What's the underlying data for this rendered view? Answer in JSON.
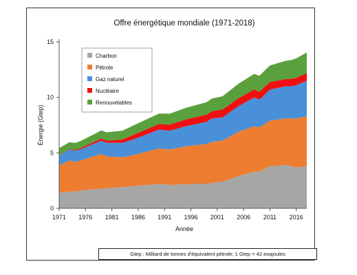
{
  "chart_data": {
    "type": "area",
    "stacked": true,
    "title": "Offre énergétique mondiale (1971-2018)",
    "xlabel": "Année",
    "ylabel": "Énergie (Gtep)",
    "xlim": [
      1971,
      2018
    ],
    "ylim": [
      0,
      15
    ],
    "x_ticks": [
      1971,
      1976,
      1981,
      1986,
      1991,
      1996,
      2001,
      2006,
      2011,
      2016
    ],
    "y_ticks": [
      0,
      5,
      10,
      15
    ],
    "grid": false,
    "legend_position": "top-left",
    "x": [
      1971,
      1973,
      1974,
      1975,
      1979,
      1980,
      1983,
      1985,
      1990,
      1992,
      1995,
      1999,
      2000,
      2002,
      2005,
      2008,
      2009,
      2011,
      2014,
      2015,
      2016,
      2018
    ],
    "series": [
      {
        "name": "Charbon",
        "color": "#a6a6a6",
        "values": [
          1.4,
          1.5,
          1.5,
          1.6,
          1.8,
          1.8,
          1.9,
          2.0,
          2.2,
          2.1,
          2.2,
          2.2,
          2.3,
          2.4,
          2.9,
          3.3,
          3.3,
          3.8,
          3.9,
          3.8,
          3.7,
          3.8
        ]
      },
      {
        "name": "Pétrole",
        "color": "#ed7d31",
        "values": [
          2.5,
          2.8,
          2.7,
          2.7,
          3.1,
          2.9,
          2.7,
          2.8,
          3.2,
          3.2,
          3.4,
          3.6,
          3.7,
          3.7,
          4.0,
          4.1,
          4.0,
          4.1,
          4.2,
          4.3,
          4.4,
          4.5
        ]
      },
      {
        "name": "Gaz naturel",
        "color": "#4a90d9",
        "values": [
          0.9,
          1.0,
          1.0,
          1.0,
          1.2,
          1.2,
          1.3,
          1.4,
          1.7,
          1.7,
          1.8,
          2.0,
          2.1,
          2.1,
          2.3,
          2.6,
          2.5,
          2.8,
          2.9,
          2.9,
          3.0,
          3.2
        ]
      },
      {
        "name": "Nucléaire",
        "color": "#ee1111",
        "values": [
          0.03,
          0.05,
          0.06,
          0.1,
          0.2,
          0.2,
          0.3,
          0.4,
          0.5,
          0.55,
          0.6,
          0.65,
          0.65,
          0.7,
          0.72,
          0.72,
          0.7,
          0.68,
          0.65,
          0.66,
          0.67,
          0.7
        ]
      },
      {
        "name": "Renouvelables",
        "color": "#5aa03c",
        "values": [
          0.6,
          0.62,
          0.63,
          0.65,
          0.72,
          0.75,
          0.8,
          0.85,
          0.95,
          0.98,
          1.05,
          1.12,
          1.15,
          1.2,
          1.3,
          1.4,
          1.45,
          1.5,
          1.65,
          1.7,
          1.75,
          1.85
        ]
      }
    ]
  },
  "footnote": "Gtep : Milliard de tonnes d'équivalent pétrole; 1 Gtep = 42 exajoules"
}
